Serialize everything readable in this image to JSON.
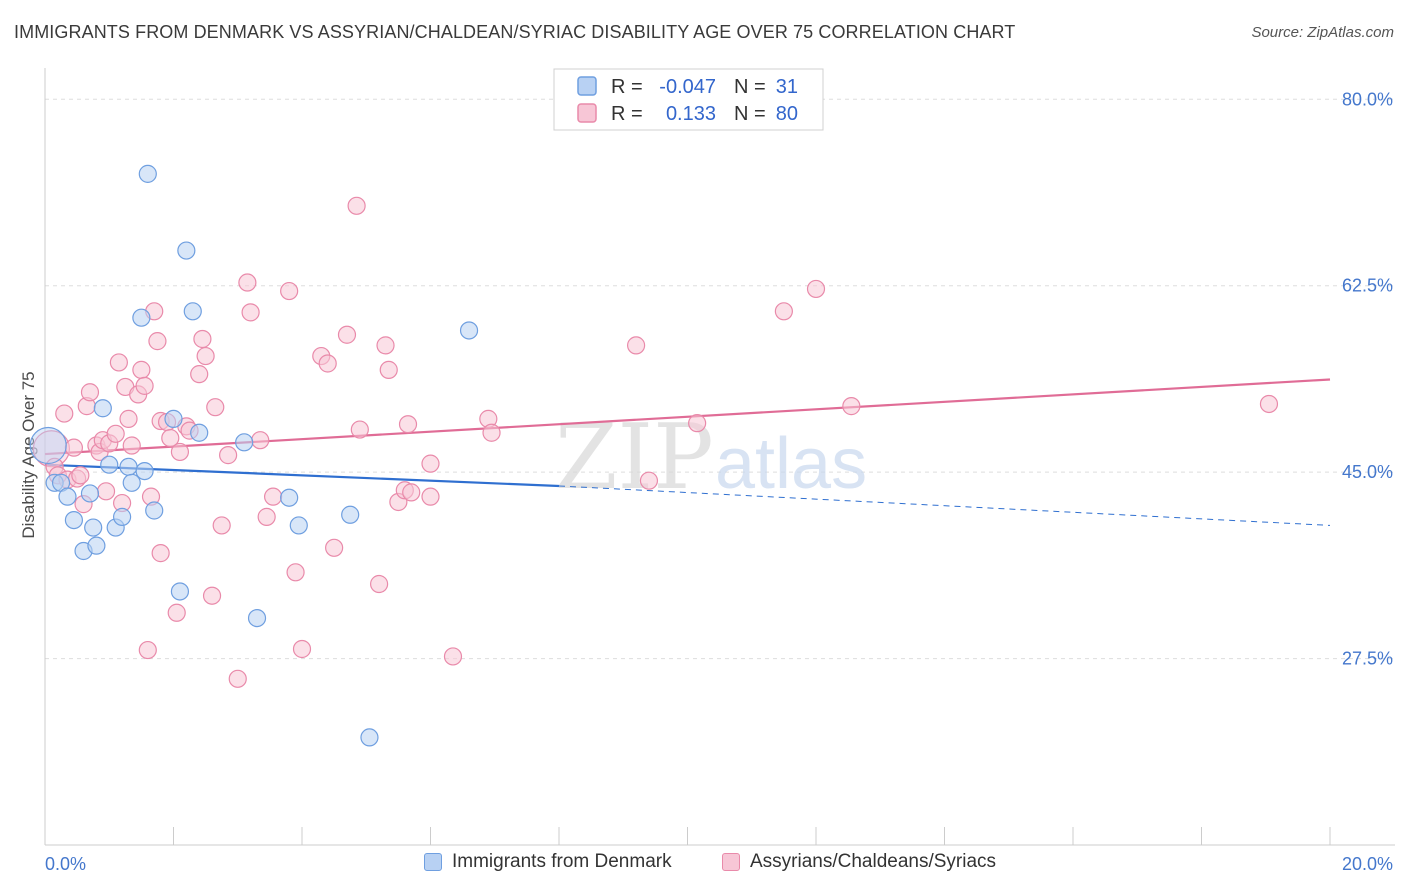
{
  "title": "IMMIGRANTS FROM DENMARK VS ASSYRIAN/CHALDEAN/SYRIAC DISABILITY AGE OVER 75 CORRELATION CHART",
  "source": "Source: ZipAtlas.com",
  "watermark": {
    "zip": "ZIP",
    "atlas": "atlas"
  },
  "colors": {
    "blue_fill": "#b8d1f3",
    "blue_stroke": "#6f9fe0",
    "blue_line": "#2f6fd0",
    "pink_fill": "#f7c6d6",
    "pink_stroke": "#e98aaa",
    "pink_line": "#e06c96",
    "grid": "#dddddd",
    "tick_text": "#4477cc"
  },
  "legend_top": {
    "rows": [
      {
        "r_label": "R =",
        "r_value": "-0.047",
        "n_label": "N =",
        "n_value": "31"
      },
      {
        "r_label": "R =",
        "r_value": "0.133",
        "n_label": "N =",
        "n_value": "80"
      }
    ]
  },
  "legend_bottom": [
    "Immigrants from Denmark",
    "Assyrians/Chaldeans/Syriacs"
  ],
  "chart_data": {
    "type": "scatter",
    "title": "IMMIGRANTS FROM DENMARK VS ASSYRIAN/CHALDEAN/SYRIAC DISABILITY AGE OVER 75 CORRELATION CHART",
    "xlabel": "",
    "ylabel": "Disability Age Over 75",
    "xlim": [
      0,
      20
    ],
    "ylim": [
      10,
      82
    ],
    "x_tick_labels": [
      "0.0%",
      "20.0%"
    ],
    "y_ticks": [
      27.5,
      45.0,
      62.5,
      80.0
    ],
    "y_tick_labels": [
      "27.5%",
      "45.0%",
      "62.5%",
      "80.0%"
    ],
    "grid": true,
    "series": [
      {
        "name": "Immigrants from Denmark",
        "R": -0.047,
        "N": 31,
        "trend": {
          "x0": 0,
          "y0": 45.7,
          "x1": 8,
          "y1": 43.7,
          "dashed_to_x": 20,
          "dashed_to_y": 40.0
        },
        "points": [
          {
            "x": 0.05,
            "y": 47.5,
            "big": true
          },
          {
            "x": 0.15,
            "y": 44.0
          },
          {
            "x": 0.25,
            "y": 44.0
          },
          {
            "x": 0.35,
            "y": 42.7
          },
          {
            "x": 0.45,
            "y": 40.5
          },
          {
            "x": 0.6,
            "y": 37.6
          },
          {
            "x": 0.7,
            "y": 43.0
          },
          {
            "x": 0.75,
            "y": 39.8
          },
          {
            "x": 0.8,
            "y": 38.1
          },
          {
            "x": 0.9,
            "y": 51.0
          },
          {
            "x": 1.0,
            "y": 45.7
          },
          {
            "x": 1.1,
            "y": 39.8
          },
          {
            "x": 1.2,
            "y": 40.8
          },
          {
            "x": 1.3,
            "y": 45.5
          },
          {
            "x": 1.35,
            "y": 44.0
          },
          {
            "x": 1.5,
            "y": 59.5
          },
          {
            "x": 1.55,
            "y": 45.1
          },
          {
            "x": 1.6,
            "y": 73.0
          },
          {
            "x": 1.7,
            "y": 41.4
          },
          {
            "x": 2.0,
            "y": 50.0
          },
          {
            "x": 2.1,
            "y": 33.8
          },
          {
            "x": 2.2,
            "y": 65.8
          },
          {
            "x": 2.3,
            "y": 60.1
          },
          {
            "x": 2.4,
            "y": 48.7
          },
          {
            "x": 3.1,
            "y": 47.8
          },
          {
            "x": 3.3,
            "y": 31.3
          },
          {
            "x": 3.8,
            "y": 42.6
          },
          {
            "x": 3.95,
            "y": 40.0
          },
          {
            "x": 4.75,
            "y": 41.0
          },
          {
            "x": 5.05,
            "y": 20.1
          },
          {
            "x": 6.6,
            "y": 58.3
          }
        ]
      },
      {
        "name": "Assyrians/Chaldeans/Syriacs",
        "R": 0.133,
        "N": 80,
        "trend": {
          "x0": 0,
          "y0": 46.7,
          "x1": 20,
          "y1": 53.7
        },
        "points": [
          {
            "x": 0.1,
            "y": 47.2,
            "big": true
          },
          {
            "x": 0.15,
            "y": 45.5
          },
          {
            "x": 0.2,
            "y": 44.7
          },
          {
            "x": 0.3,
            "y": 50.5
          },
          {
            "x": 0.35,
            "y": 44.3
          },
          {
            "x": 0.45,
            "y": 47.3
          },
          {
            "x": 0.5,
            "y": 44.4
          },
          {
            "x": 0.55,
            "y": 44.7
          },
          {
            "x": 0.6,
            "y": 42.0
          },
          {
            "x": 0.65,
            "y": 51.2
          },
          {
            "x": 0.7,
            "y": 52.5
          },
          {
            "x": 0.8,
            "y": 47.5
          },
          {
            "x": 0.85,
            "y": 46.9
          },
          {
            "x": 0.9,
            "y": 48.0
          },
          {
            "x": 0.95,
            "y": 43.2
          },
          {
            "x": 1.0,
            "y": 47.7
          },
          {
            "x": 1.1,
            "y": 48.6
          },
          {
            "x": 1.15,
            "y": 55.3
          },
          {
            "x": 1.2,
            "y": 42.1
          },
          {
            "x": 1.25,
            "y": 53.0
          },
          {
            "x": 1.3,
            "y": 50.0
          },
          {
            "x": 1.35,
            "y": 47.5
          },
          {
            "x": 1.45,
            "y": 52.3
          },
          {
            "x": 1.5,
            "y": 54.6
          },
          {
            "x": 1.55,
            "y": 53.1
          },
          {
            "x": 1.6,
            "y": 28.3
          },
          {
            "x": 1.65,
            "y": 42.7
          },
          {
            "x": 1.7,
            "y": 60.1
          },
          {
            "x": 1.75,
            "y": 57.3
          },
          {
            "x": 1.8,
            "y": 37.4
          },
          {
            "x": 1.8,
            "y": 49.8
          },
          {
            "x": 1.9,
            "y": 49.7
          },
          {
            "x": 1.95,
            "y": 48.2
          },
          {
            "x": 2.05,
            "y": 31.8
          },
          {
            "x": 2.1,
            "y": 46.9
          },
          {
            "x": 2.2,
            "y": 49.3
          },
          {
            "x": 2.25,
            "y": 48.9
          },
          {
            "x": 2.4,
            "y": 54.2
          },
          {
            "x": 2.45,
            "y": 57.5
          },
          {
            "x": 2.5,
            "y": 55.9
          },
          {
            "x": 2.6,
            "y": 33.4
          },
          {
            "x": 2.65,
            "y": 51.1
          },
          {
            "x": 2.75,
            "y": 40.0
          },
          {
            "x": 2.85,
            "y": 46.6
          },
          {
            "x": 3.0,
            "y": 25.6
          },
          {
            "x": 3.15,
            "y": 62.8
          },
          {
            "x": 3.2,
            "y": 60.0
          },
          {
            "x": 3.35,
            "y": 48.0
          },
          {
            "x": 3.45,
            "y": 40.8
          },
          {
            "x": 3.55,
            "y": 42.7
          },
          {
            "x": 3.8,
            "y": 62.0
          },
          {
            "x": 3.9,
            "y": 35.6
          },
          {
            "x": 4.0,
            "y": 28.4
          },
          {
            "x": 4.3,
            "y": 55.9
          },
          {
            "x": 4.4,
            "y": 55.2
          },
          {
            "x": 4.5,
            "y": 37.9
          },
          {
            "x": 4.7,
            "y": 57.9
          },
          {
            "x": 4.85,
            "y": 70.0
          },
          {
            "x": 4.9,
            "y": 49.0
          },
          {
            "x": 5.2,
            "y": 34.5
          },
          {
            "x": 5.3,
            "y": 56.9
          },
          {
            "x": 5.35,
            "y": 54.6
          },
          {
            "x": 5.5,
            "y": 42.2
          },
          {
            "x": 5.6,
            "y": 43.3
          },
          {
            "x": 5.65,
            "y": 49.5
          },
          {
            "x": 5.7,
            "y": 43.1
          },
          {
            "x": 6.0,
            "y": 42.7
          },
          {
            "x": 6.0,
            "y": 45.8
          },
          {
            "x": 6.35,
            "y": 27.7
          },
          {
            "x": 6.9,
            "y": 50.0
          },
          {
            "x": 6.95,
            "y": 48.7
          },
          {
            "x": 9.2,
            "y": 56.9
          },
          {
            "x": 9.4,
            "y": 44.2
          },
          {
            "x": 10.15,
            "y": 49.6
          },
          {
            "x": 11.5,
            "y": 60.1
          },
          {
            "x": 12.0,
            "y": 62.2
          },
          {
            "x": 12.55,
            "y": 51.2
          },
          {
            "x": 19.05,
            "y": 51.4
          }
        ]
      }
    ]
  }
}
